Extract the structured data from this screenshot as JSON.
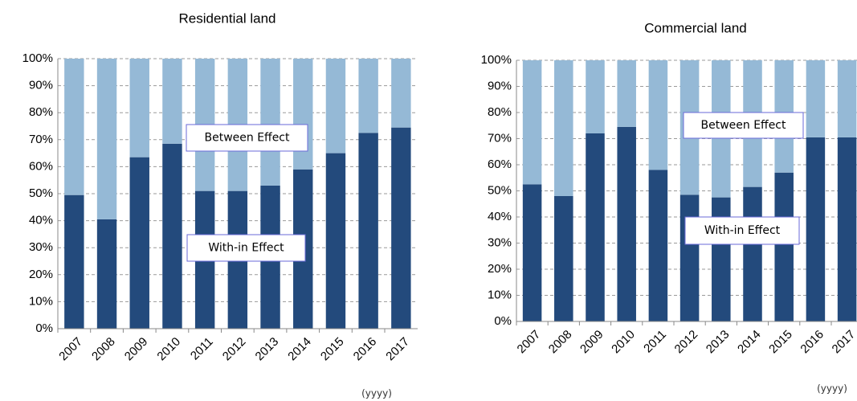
{
  "chart_data": [
    {
      "type": "stacked_bar",
      "title": "Residential land",
      "x_unit": "(yyyy)",
      "categories": [
        "2007",
        "2008",
        "2009",
        "2010",
        "2011",
        "2012",
        "2013",
        "2014",
        "2015",
        "2016",
        "2017"
      ],
      "series": [
        {
          "name": "With-in Effect",
          "color": "#234a7c",
          "values": [
            49.5,
            40.5,
            63.5,
            68.5,
            51,
            51,
            53,
            59,
            65,
            72.5,
            74.5
          ]
        },
        {
          "name": "Between Effect",
          "color": "#95b9d6",
          "values": [
            50.5,
            59.5,
            36.5,
            31.5,
            49,
            49,
            47,
            41,
            35,
            27.5,
            25.5
          ]
        }
      ],
      "ylim": [
        0,
        100
      ],
      "yticks": [
        {
          "value": 0,
          "label": "0%"
        },
        {
          "value": 10,
          "label": "10%"
        },
        {
          "value": 20,
          "label": "20%"
        },
        {
          "value": 30,
          "label": "30%"
        },
        {
          "value": 40,
          "label": "40%"
        },
        {
          "value": 50,
          "label": "50%"
        },
        {
          "value": 60,
          "label": "60%"
        },
        {
          "value": 70,
          "label": "70%"
        },
        {
          "value": 80,
          "label": "80%"
        },
        {
          "value": 90,
          "label": "90%"
        },
        {
          "value": 100,
          "label": "100%"
        }
      ],
      "grid": true
    },
    {
      "type": "stacked_bar",
      "title": "Commercial land",
      "x_unit": "(yyyy)",
      "categories": [
        "2007",
        "2008",
        "2009",
        "2010",
        "2011",
        "2012",
        "2013",
        "2014",
        "2015",
        "2016",
        "2017"
      ],
      "series": [
        {
          "name": "With-in Effect",
          "color": "#234a7c",
          "values": [
            52.5,
            48,
            72,
            74.5,
            58,
            48.5,
            47.5,
            51.5,
            57,
            70.5,
            70.5
          ]
        },
        {
          "name": "Between Effect",
          "color": "#95b9d6",
          "values": [
            47.5,
            52,
            28,
            25.5,
            42,
            51.5,
            52.5,
            48.5,
            43,
            29.5,
            29.5
          ]
        }
      ],
      "ylim": [
        0,
        100
      ],
      "yticks": [
        {
          "value": 0,
          "label": "0%"
        },
        {
          "value": 10,
          "label": "10%"
        },
        {
          "value": 20,
          "label": "20%"
        },
        {
          "value": 30,
          "label": "30%"
        },
        {
          "value": 40,
          "label": "40%"
        },
        {
          "value": 50,
          "label": "50%"
        },
        {
          "value": 60,
          "label": "60%"
        },
        {
          "value": 70,
          "label": "70%"
        },
        {
          "value": 80,
          "label": "80%"
        },
        {
          "value": 90,
          "label": "90%"
        },
        {
          "value": 100,
          "label": "100%"
        }
      ],
      "grid": true
    }
  ]
}
